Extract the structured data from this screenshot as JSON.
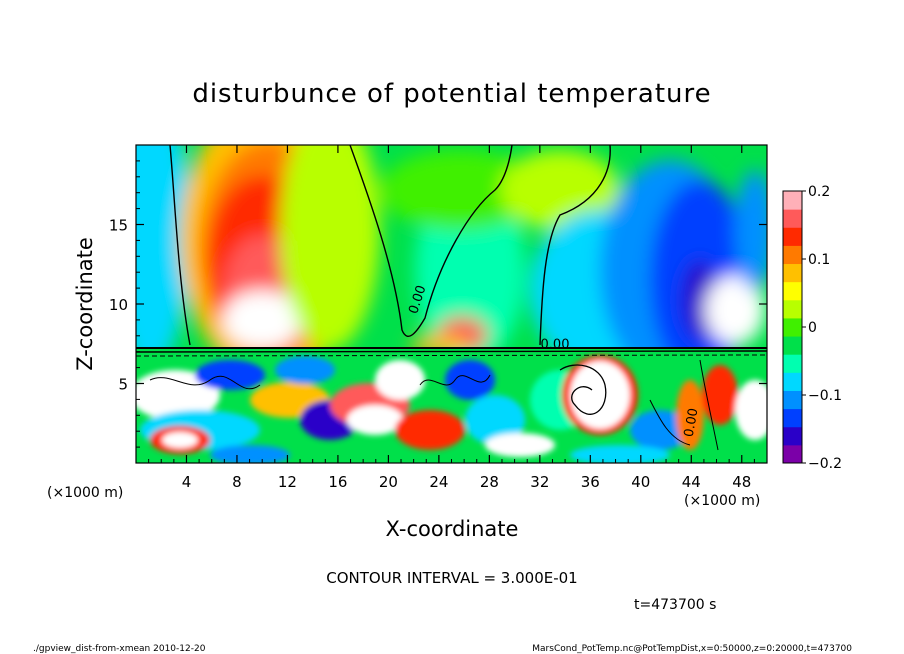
{
  "chart_data": {
    "type": "heatmap",
    "title": "disturbunce of potential temperature",
    "xlabel": "X-coordinate",
    "ylabel": "Z-coordinate",
    "x_unit_left": "(×1000 m)",
    "x_unit_right": "(×1000 m)",
    "xlim": [
      0,
      50
    ],
    "ylim": [
      0,
      20
    ],
    "x_ticks": [
      {
        "value": 4,
        "label": "4"
      },
      {
        "value": 8,
        "label": "8"
      },
      {
        "value": 12,
        "label": "12"
      },
      {
        "value": 16,
        "label": "16"
      },
      {
        "value": 20,
        "label": "20"
      },
      {
        "value": 24,
        "label": "24"
      },
      {
        "value": 28,
        "label": "28"
      },
      {
        "value": 32,
        "label": "32"
      },
      {
        "value": 36,
        "label": "36"
      },
      {
        "value": 40,
        "label": "40"
      },
      {
        "value": 44,
        "label": "44"
      },
      {
        "value": 48,
        "label": "48"
      }
    ],
    "y_ticks": [
      {
        "value": 5,
        "label": "5"
      },
      {
        "value": 10,
        "label": "10"
      },
      {
        "value": 15,
        "label": "15"
      }
    ],
    "colorbar": {
      "min": -0.2,
      "max": 0.2,
      "ticks": [
        {
          "value": 0.2,
          "label": "0.2"
        },
        {
          "value": 0.1,
          "label": "0.1"
        },
        {
          "value": 0,
          "label": "0"
        },
        {
          "value": -0.1,
          "label": "−0.1"
        },
        {
          "value": -0.2,
          "label": "−0.2"
        }
      ],
      "colors": [
        "#7b00a8",
        "#2a00c8",
        "#0040ff",
        "#0090ff",
        "#00d8ff",
        "#00ffb0",
        "#00e04a",
        "#40f000",
        "#b8ff00",
        "#ffff00",
        "#ffc000",
        "#ff7a00",
        "#ff2a00",
        "#ff5a5a",
        "#ffb0b8"
      ]
    },
    "contour_labels": [
      {
        "x": 22.6,
        "z": 10.2,
        "text": "0.00",
        "angle": -72
      },
      {
        "x": 33.2,
        "z": 7.2,
        "text": "0.00",
        "angle": 0
      },
      {
        "x": 44.3,
        "z": 2.5,
        "text": "0.00",
        "angle": -80
      }
    ],
    "contour_interval": "CONTOUR INTERVAL = 3.000E-01",
    "time_label": "t=473700 s"
  },
  "footer": {
    "left": "./gpview_dist-from-xmean  2010-12-20",
    "right": "MarsCond_PotTemp.nc@PotTempDist,x=0:50000,z=0:20000,t=473700"
  }
}
